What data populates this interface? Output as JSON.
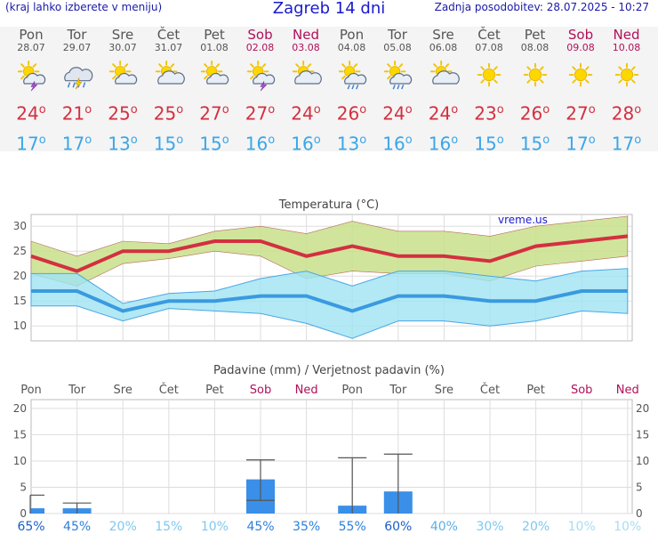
{
  "header": {
    "menu_hint": "(kraj lahko izberete v meniju)",
    "title": "Zagreb 14 dni",
    "last_update": "Zadnja posodobitev: 28.07.2025 - 10:27"
  },
  "days": [
    {
      "name": "Pon",
      "date": "28.07",
      "weekend": false,
      "icon": "sun-cloud-thunder-icon",
      "tmax": "24",
      "tmin": "17"
    },
    {
      "name": "Tor",
      "date": "29.07",
      "weekend": false,
      "icon": "cloud-rain-thunder-icon",
      "tmax": "21",
      "tmin": "17"
    },
    {
      "name": "Sre",
      "date": "30.07",
      "weekend": false,
      "icon": "sun-cloud-icon",
      "tmax": "25",
      "tmin": "13"
    },
    {
      "name": "Čet",
      "date": "31.07",
      "weekend": false,
      "icon": "cloud-sun-icon",
      "tmax": "25",
      "tmin": "15"
    },
    {
      "name": "Pet",
      "date": "01.08",
      "weekend": false,
      "icon": "sun-cloud-icon",
      "tmax": "27",
      "tmin": "15"
    },
    {
      "name": "Sob",
      "date": "02.08",
      "weekend": true,
      "icon": "sun-cloud-thunder-icon",
      "tmax": "27",
      "tmin": "16"
    },
    {
      "name": "Ned",
      "date": "03.08",
      "weekend": true,
      "icon": "cloud-sun-icon",
      "tmax": "24",
      "tmin": "16"
    },
    {
      "name": "Pon",
      "date": "04.08",
      "weekend": false,
      "icon": "sun-cloud-rain-icon",
      "tmax": "26",
      "tmin": "13"
    },
    {
      "name": "Tor",
      "date": "05.08",
      "weekend": false,
      "icon": "sun-cloud-rain-icon",
      "tmax": "24",
      "tmin": "16"
    },
    {
      "name": "Sre",
      "date": "06.08",
      "weekend": false,
      "icon": "cloud-sun-icon",
      "tmax": "24",
      "tmin": "16"
    },
    {
      "name": "Čet",
      "date": "07.08",
      "weekend": false,
      "icon": "sun-icon",
      "tmax": "23",
      "tmin": "15"
    },
    {
      "name": "Pet",
      "date": "08.08",
      "weekend": false,
      "icon": "sun-icon",
      "tmax": "26",
      "tmin": "15"
    },
    {
      "name": "Sob",
      "date": "09.08",
      "weekend": true,
      "icon": "sun-icon",
      "tmax": "27",
      "tmin": "17"
    },
    {
      "name": "Ned",
      "date": "10.08",
      "weekend": true,
      "icon": "sun-icon",
      "tmax": "28",
      "tmin": "17"
    }
  ],
  "colors": {
    "max_line": "#d33040",
    "min_line": "#3a9ae0",
    "max_band": "#c8e08a",
    "min_band": "#9fe3f3",
    "bar": "#3a8fe8",
    "weekend": "#b0105a"
  },
  "chart_data": [
    {
      "type": "line",
      "title": "Temperatura (°C)",
      "watermark": "vreme.us",
      "x": [
        "Pon",
        "Tor",
        "Sre",
        "Čet",
        "Pet",
        "Sob",
        "Ned",
        "Pon",
        "Tor",
        "Sre",
        "Čet",
        "Pet",
        "Sob",
        "Ned"
      ],
      "ylim": [
        7,
        32
      ],
      "yticks": [
        10,
        15,
        20,
        25,
        30
      ],
      "grid": true,
      "series": [
        {
          "name": "max",
          "values": [
            24,
            21,
            25,
            25,
            27,
            27,
            24,
            26,
            24,
            24,
            23,
            26,
            27,
            28
          ],
          "band_low": [
            20.5,
            18,
            22.5,
            23.5,
            25,
            24,
            19.5,
            21,
            20.5,
            20.5,
            19,
            22,
            23,
            24
          ],
          "band_high": [
            27,
            24,
            27,
            26.5,
            29,
            30,
            28.5,
            31,
            29,
            29,
            28,
            30,
            31,
            32
          ]
        },
        {
          "name": "min",
          "values": [
            17,
            17,
            13,
            15,
            15,
            16,
            16,
            13,
            16,
            16,
            15,
            15,
            17,
            17
          ],
          "band_low": [
            14,
            14,
            11,
            13.5,
            13,
            12.5,
            10.5,
            7.5,
            11,
            11,
            10,
            11,
            13,
            12.5
          ],
          "band_high": [
            20.5,
            20.5,
            14.5,
            16.5,
            17,
            19.5,
            21,
            18,
            21,
            21,
            20,
            19,
            21,
            21.5
          ]
        }
      ]
    },
    {
      "type": "bar",
      "title": "Padavine (mm) / Verjetnost padavin (%)",
      "categories": [
        "Pon",
        "Tor",
        "Sre",
        "Čet",
        "Pet",
        "Sob",
        "Ned",
        "Pon",
        "Tor",
        "Sre",
        "Čet",
        "Pet",
        "Sob",
        "Ned"
      ],
      "values": [
        1,
        1,
        0,
        0,
        0,
        6.5,
        0,
        1.5,
        4.2,
        0,
        0,
        0,
        0,
        0
      ],
      "err_low": [
        0,
        0,
        0,
        0,
        0,
        2.5,
        0,
        0,
        0,
        0,
        0,
        0,
        0,
        0
      ],
      "err_high": [
        3.5,
        2,
        0,
        0,
        0,
        10.2,
        0,
        10.6,
        11.3,
        0,
        0,
        0,
        0,
        0
      ],
      "probability": [
        "65%",
        "45%",
        "20%",
        "15%",
        "10%",
        "45%",
        "35%",
        "55%",
        "60%",
        "40%",
        "30%",
        "20%",
        "10%",
        "10%"
      ],
      "ylim": [
        0,
        21
      ],
      "yticks": [
        0,
        5,
        10,
        15,
        20
      ],
      "grid": true
    }
  ]
}
